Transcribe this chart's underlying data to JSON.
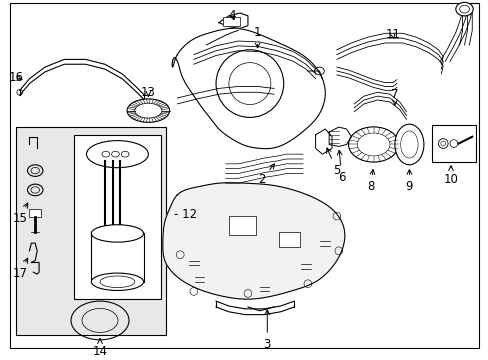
{
  "bg_color": "#ffffff",
  "fig_width": 4.89,
  "fig_height": 3.6,
  "dpi": 100,
  "label_fontsize": 8.5,
  "line_color": "#000000"
}
